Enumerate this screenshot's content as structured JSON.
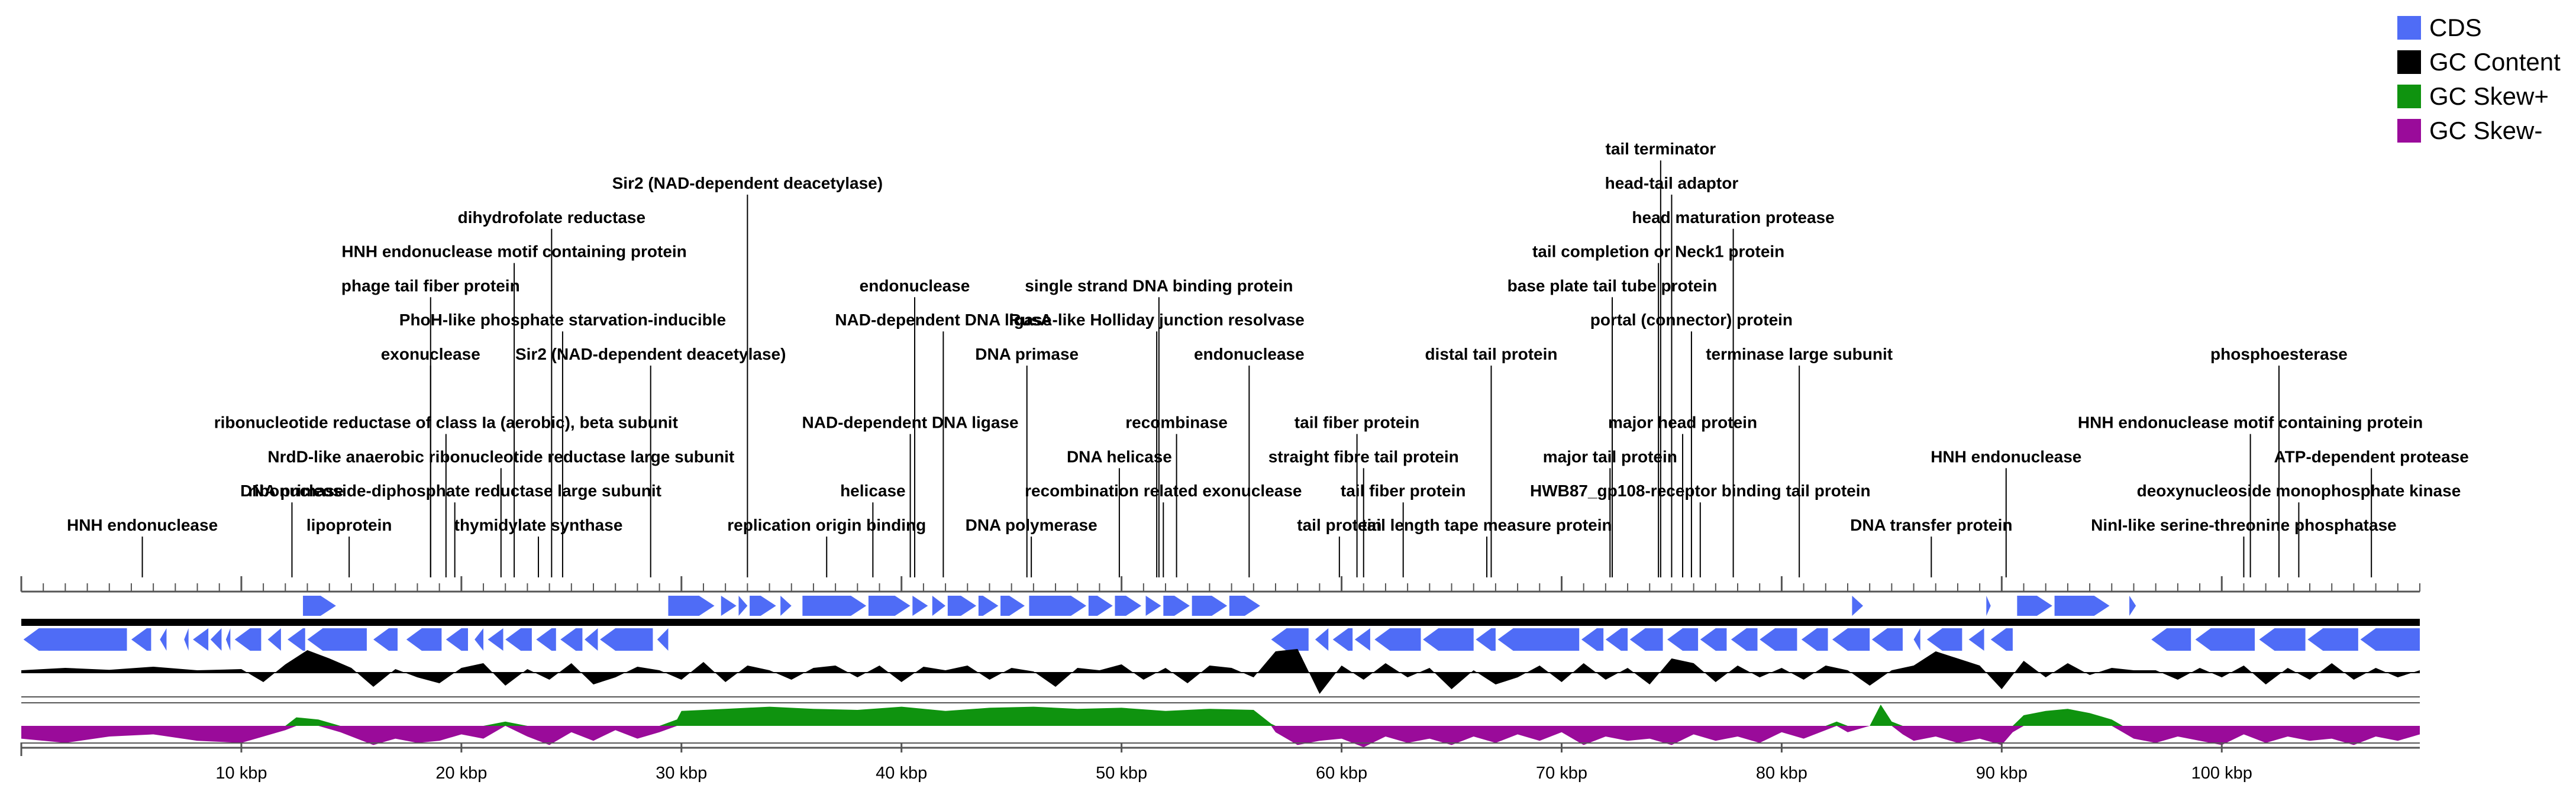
{
  "legend": [
    {
      "label": "CDS",
      "color": "#4f6cf6"
    },
    {
      "label": "GC Content",
      "color": "#000000"
    },
    {
      "label": "GC Skew+",
      "color": "#0f930f"
    },
    {
      "label": "GC Skew-",
      "color": "#9a0b9a"
    }
  ],
  "colors": {
    "cds": "#4f6cf6",
    "gc": "#000000",
    "skew_pos": "#0f930f",
    "skew_neg": "#9a0b9a",
    "rule": "#555555"
  },
  "chart_data": {
    "type": "genome-map",
    "genome_length_kbp": 109,
    "x_axis": {
      "unit": "kbp",
      "range": [
        0,
        109
      ],
      "tick_labels": [
        "10 kbp",
        "20 kbp",
        "30 kbp",
        "40 kbp",
        "50 kbp",
        "60 kbp",
        "70 kbp",
        "80 kbp",
        "90 kbp",
        "100 kbp"
      ],
      "tick_values": [
        10,
        20,
        30,
        40,
        50,
        60,
        70,
        80,
        90,
        100
      ]
    },
    "annotations": [
      {
        "label": "HNH endonuclease",
        "pos_kbp": 5.5,
        "level": 0
      },
      {
        "label": "DNA primase",
        "pos_kbp": 12.3,
        "level": 1
      },
      {
        "label": "lipoprotein",
        "pos_kbp": 14.9,
        "level": 0
      },
      {
        "label": "exonuclease",
        "pos_kbp": 18.6,
        "level": 5
      },
      {
        "label": "phage tail fiber protein",
        "pos_kbp": 18.6,
        "level": 7
      },
      {
        "label": "ribonucleotide reductase of class Ia (aerobic), beta subunit",
        "pos_kbp": 19.3,
        "level": 3
      },
      {
        "label": "ribonucleoside-diphosphate reductase large subunit",
        "pos_kbp": 19.7,
        "level": 1
      },
      {
        "label": "NrdD-like anaerobic ribonucleotide reductase large subunit",
        "pos_kbp": 21.8,
        "level": 2
      },
      {
        "label": "HNH endonuclease motif containing protein",
        "pos_kbp": 22.4,
        "level": 8
      },
      {
        "label": "thymidylate synthase",
        "pos_kbp": 23.5,
        "level": 0
      },
      {
        "label": "dihydrofolate reductase",
        "pos_kbp": 24.1,
        "level": 9
      },
      {
        "label": "PhoH-like phosphate starvation-inducible",
        "pos_kbp": 24.6,
        "level": 6
      },
      {
        "label": "Sir2 (NAD-dependent deacetylase)",
        "pos_kbp": 28.6,
        "level": 5
      },
      {
        "label": "Sir2 (NAD-dependent deacetylase)",
        "pos_kbp": 33.0,
        "level": 10
      },
      {
        "label": "replication origin binding",
        "pos_kbp": 36.6,
        "level": 0
      },
      {
        "label": "helicase",
        "pos_kbp": 38.7,
        "level": 1
      },
      {
        "label": "NAD-dependent DNA ligase",
        "pos_kbp": 40.4,
        "level": 3
      },
      {
        "label": "endonuclease",
        "pos_kbp": 40.6,
        "level": 7
      },
      {
        "label": "NAD-dependent DNA ligase",
        "pos_kbp": 41.9,
        "level": 6
      },
      {
        "label": "DNA primase",
        "pos_kbp": 45.7,
        "level": 5
      },
      {
        "label": "DNA polymerase",
        "pos_kbp": 45.9,
        "level": 0
      },
      {
        "label": "DNA helicase",
        "pos_kbp": 49.9,
        "level": 2
      },
      {
        "label": "recombination related exonuclease",
        "pos_kbp": 51.9,
        "level": 1
      },
      {
        "label": "recombinase",
        "pos_kbp": 52.5,
        "level": 3
      },
      {
        "label": "RusA-like Holliday junction resolvase",
        "pos_kbp": 51.6,
        "level": 6
      },
      {
        "label": "single strand DNA binding protein",
        "pos_kbp": 51.7,
        "level": 7
      },
      {
        "label": "endonuclease",
        "pos_kbp": 55.8,
        "level": 5
      },
      {
        "label": "tail protein",
        "pos_kbp": 59.9,
        "level": 0
      },
      {
        "label": "tail fiber protein",
        "pos_kbp": 60.7,
        "level": 3
      },
      {
        "label": "straight fibre tail protein",
        "pos_kbp": 61.0,
        "level": 2
      },
      {
        "label": "tail fiber protein",
        "pos_kbp": 62.8,
        "level": 1
      },
      {
        "label": "tail length tape measure protein",
        "pos_kbp": 66.6,
        "level": 0
      },
      {
        "label": "distal tail protein",
        "pos_kbp": 66.8,
        "level": 5
      },
      {
        "label": "major tail protein",
        "pos_kbp": 72.2,
        "level": 2
      },
      {
        "label": "base plate tail tube protein",
        "pos_kbp": 72.3,
        "level": 7
      },
      {
        "label": "tail completion or Neck1 protein",
        "pos_kbp": 74.4,
        "level": 8
      },
      {
        "label": "tail terminator",
        "pos_kbp": 74.5,
        "level": 11
      },
      {
        "label": "head-tail adaptor",
        "pos_kbp": 75.0,
        "level": 10
      },
      {
        "label": "major head protein",
        "pos_kbp": 75.5,
        "level": 3
      },
      {
        "label": "portal (connector) protein",
        "pos_kbp": 75.9,
        "level": 6
      },
      {
        "label": "HWB87_gp108-receptor binding tail protein",
        "pos_kbp": 76.3,
        "level": 1
      },
      {
        "label": "head maturation protease",
        "pos_kbp": 77.8,
        "level": 9
      },
      {
        "label": "terminase large subunit",
        "pos_kbp": 80.8,
        "level": 5
      },
      {
        "label": "DNA transfer protein",
        "pos_kbp": 86.8,
        "level": 0
      },
      {
        "label": "HNH endonuclease",
        "pos_kbp": 90.2,
        "level": 2
      },
      {
        "label": "NinI-like serine-threonine phosphatase",
        "pos_kbp": 101.0,
        "level": 0
      },
      {
        "label": "HNH endonuclease motif containing protein",
        "pos_kbp": 101.3,
        "level": 3
      },
      {
        "label": "phosphoesterase",
        "pos_kbp": 102.6,
        "level": 5
      },
      {
        "label": "deoxynucleoside monophosphate kinase",
        "pos_kbp": 103.5,
        "level": 1
      },
      {
        "label": "ATP-dependent protease",
        "pos_kbp": 106.8,
        "level": 2
      }
    ],
    "cds_forward": [
      [
        12.8,
        14.3
      ],
      [
        29.4,
        31.5
      ],
      [
        31.8,
        32.5
      ],
      [
        32.6,
        33.0
      ],
      [
        33.1,
        34.3
      ],
      [
        34.5,
        35.0
      ],
      [
        35.5,
        38.4
      ],
      [
        38.5,
        40.4
      ],
      [
        40.5,
        41.2
      ],
      [
        41.4,
        42.0
      ],
      [
        42.1,
        43.4
      ],
      [
        43.5,
        44.4
      ],
      [
        44.5,
        45.6
      ],
      [
        45.8,
        48.4
      ],
      [
        48.5,
        49.6
      ],
      [
        49.7,
        50.9
      ],
      [
        51.1,
        51.8
      ],
      [
        51.9,
        53.1
      ],
      [
        53.2,
        54.8
      ],
      [
        54.9,
        56.3
      ],
      [
        83.2,
        83.7
      ],
      [
        89.3,
        89.5
      ],
      [
        90.7,
        92.3
      ],
      [
        92.4,
        94.9
      ],
      [
        95.8,
        96.1
      ]
    ],
    "cds_reverse": [
      [
        0.1,
        4.8
      ],
      [
        5.0,
        5.9
      ],
      [
        6.3,
        6.6
      ],
      [
        7.4,
        7.6
      ],
      [
        7.8,
        8.5
      ],
      [
        8.6,
        9.1
      ],
      [
        9.3,
        9.5
      ],
      [
        9.7,
        10.9
      ],
      [
        11.2,
        11.8
      ],
      [
        12.1,
        12.9
      ],
      [
        13.0,
        15.7
      ],
      [
        16.0,
        17.1
      ],
      [
        17.5,
        19.1
      ],
      [
        19.3,
        20.3
      ],
      [
        20.6,
        21.0
      ],
      [
        21.2,
        21.9
      ],
      [
        22.0,
        23.2
      ],
      [
        23.4,
        24.3
      ],
      [
        24.5,
        25.5
      ],
      [
        25.6,
        26.2
      ],
      [
        26.3,
        28.7
      ],
      [
        28.9,
        29.4
      ],
      [
        56.8,
        58.5
      ],
      [
        58.8,
        59.4
      ],
      [
        59.6,
        60.5
      ],
      [
        60.6,
        61.3
      ],
      [
        61.5,
        63.6
      ],
      [
        63.7,
        66.0
      ],
      [
        66.1,
        67.0
      ],
      [
        67.1,
        70.8
      ],
      [
        70.9,
        71.9
      ],
      [
        72.0,
        73.0
      ],
      [
        73.1,
        74.6
      ],
      [
        74.8,
        76.2
      ],
      [
        76.3,
        77.5
      ],
      [
        77.7,
        78.9
      ],
      [
        79.0,
        80.7
      ],
      [
        80.9,
        82.1
      ],
      [
        82.3,
        84.0
      ],
      [
        84.1,
        85.5
      ],
      [
        86.0,
        86.3
      ],
      [
        86.6,
        88.2
      ],
      [
        88.5,
        89.2
      ],
      [
        89.5,
        90.5
      ],
      [
        96.8,
        98.6
      ],
      [
        98.8,
        101.5
      ],
      [
        101.7,
        103.8
      ],
      [
        103.9,
        106.2
      ],
      [
        106.3,
        109.0
      ]
    ],
    "gc_content_profile": [
      [
        0,
        0.1
      ],
      [
        2,
        0.2
      ],
      [
        4,
        0.12
      ],
      [
        6,
        0.25
      ],
      [
        8,
        0.1
      ],
      [
        10,
        0.15
      ],
      [
        11,
        -0.4
      ],
      [
        12,
        0.35
      ],
      [
        13,
        0.95
      ],
      [
        14,
        0.6
      ],
      [
        15,
        0.2
      ],
      [
        16,
        -0.6
      ],
      [
        17,
        0.15
      ],
      [
        18,
        -0.2
      ],
      [
        19,
        -0.45
      ],
      [
        20,
        0.2
      ],
      [
        21,
        0.4
      ],
      [
        22,
        -0.55
      ],
      [
        23,
        0.15
      ],
      [
        24,
        -0.3
      ],
      [
        25,
        0.4
      ],
      [
        26,
        -0.5
      ],
      [
        27,
        -0.2
      ],
      [
        28,
        0.25
      ],
      [
        29,
        0.1
      ],
      [
        30,
        -0.3
      ],
      [
        31,
        0.45
      ],
      [
        32,
        -0.4
      ],
      [
        33,
        0.3
      ],
      [
        34,
        0.1
      ],
      [
        35,
        -0.3
      ],
      [
        36,
        0.2
      ],
      [
        37,
        0.3
      ],
      [
        38,
        -0.2
      ],
      [
        39,
        0.3
      ],
      [
        40,
        -0.4
      ],
      [
        41,
        0.25
      ],
      [
        42,
        0.1
      ],
      [
        43,
        0.3
      ],
      [
        44,
        -0.3
      ],
      [
        45,
        0.2
      ],
      [
        46,
        0.05
      ],
      [
        47,
        -0.6
      ],
      [
        48,
        0.2
      ],
      [
        49,
        0.1
      ],
      [
        50,
        0.35
      ],
      [
        51,
        -0.3
      ],
      [
        52,
        0.2
      ],
      [
        53,
        -0.45
      ],
      [
        54,
        0.3
      ],
      [
        55,
        0.2
      ],
      [
        56,
        -0.2
      ],
      [
        57,
        0.9
      ],
      [
        58,
        1.0
      ],
      [
        59,
        -0.9
      ],
      [
        60,
        0.3
      ],
      [
        61,
        -0.3
      ],
      [
        62,
        0.4
      ],
      [
        63,
        -0.2
      ],
      [
        64,
        0.2
      ],
      [
        65,
        -0.7
      ],
      [
        66,
        0.1
      ],
      [
        67,
        -0.5
      ],
      [
        68,
        -0.2
      ],
      [
        69,
        0.3
      ],
      [
        70,
        -0.4
      ],
      [
        71,
        0.4
      ],
      [
        72,
        -0.3
      ],
      [
        73,
        0.2
      ],
      [
        74,
        -0.5
      ],
      [
        75,
        0.6
      ],
      [
        76,
        0.4
      ],
      [
        77,
        -0.4
      ],
      [
        78,
        0.3
      ],
      [
        79,
        -0.2
      ],
      [
        80,
        0.2
      ],
      [
        81,
        -0.3
      ],
      [
        82,
        0.3
      ],
      [
        83,
        0.1
      ],
      [
        84,
        -0.55
      ],
      [
        85,
        0.1
      ],
      [
        86,
        0.3
      ],
      [
        87,
        0.9
      ],
      [
        88,
        0.6
      ],
      [
        89,
        0.3
      ],
      [
        90,
        -0.7
      ],
      [
        91,
        0.5
      ],
      [
        92,
        -0.2
      ],
      [
        93,
        0.4
      ],
      [
        94,
        -0.1
      ],
      [
        95,
        0.2
      ],
      [
        96,
        0.1
      ],
      [
        97,
        0.1
      ],
      [
        98,
        -0.3
      ],
      [
        99,
        0.2
      ],
      [
        100,
        -0.2
      ],
      [
        101,
        0.3
      ],
      [
        102,
        -0.5
      ],
      [
        103,
        0.2
      ],
      [
        104,
        -0.3
      ],
      [
        105,
        0.4
      ],
      [
        106,
        -0.3
      ],
      [
        107,
        0.2
      ],
      [
        108,
        -0.2
      ],
      [
        109,
        0.1
      ]
    ],
    "gc_skew_profile": [
      [
        0,
        -0.6
      ],
      [
        2,
        -0.8
      ],
      [
        4,
        -0.5
      ],
      [
        6,
        -0.4
      ],
      [
        8,
        -0.7
      ],
      [
        10,
        -0.8
      ],
      [
        11,
        -0.5
      ],
      [
        12,
        -0.2
      ],
      [
        12.5,
        0.4
      ],
      [
        13.5,
        0.3
      ],
      [
        14.5,
        -0.3
      ],
      [
        16,
        -0.9
      ],
      [
        17,
        -0.6
      ],
      [
        18,
        -0.8
      ],
      [
        19,
        -0.7
      ],
      [
        20,
        -0.4
      ],
      [
        21,
        -0.6
      ],
      [
        22,
        0.2
      ],
      [
        23,
        -0.5
      ],
      [
        24,
        -0.9
      ],
      [
        25,
        -0.3
      ],
      [
        26,
        -0.7
      ],
      [
        27,
        -0.2
      ],
      [
        28,
        -0.6
      ],
      [
        29,
        -0.3
      ],
      [
        29.8,
        0.3
      ],
      [
        30,
        0.7
      ],
      [
        32,
        0.8
      ],
      [
        34,
        0.9
      ],
      [
        36,
        0.8
      ],
      [
        38,
        0.75
      ],
      [
        40,
        0.9
      ],
      [
        42,
        0.7
      ],
      [
        44,
        0.85
      ],
      [
        46,
        0.9
      ],
      [
        48,
        0.8
      ],
      [
        50,
        0.85
      ],
      [
        52,
        0.7
      ],
      [
        54,
        0.8
      ],
      [
        56,
        0.75
      ],
      [
        56.8,
        0.1
      ],
      [
        57,
        -0.3
      ],
      [
        58,
        -0.9
      ],
      [
        59,
        -0.7
      ],
      [
        60,
        -0.6
      ],
      [
        61,
        -1.0
      ],
      [
        62,
        -0.5
      ],
      [
        63,
        -0.8
      ],
      [
        64,
        -0.6
      ],
      [
        65,
        -0.9
      ],
      [
        66,
        -0.5
      ],
      [
        67,
        -0.8
      ],
      [
        68,
        -0.4
      ],
      [
        69,
        -0.7
      ],
      [
        70,
        -0.3
      ],
      [
        71,
        -0.9
      ],
      [
        72,
        -0.5
      ],
      [
        73,
        -0.7
      ],
      [
        74,
        -0.6
      ],
      [
        75,
        -0.9
      ],
      [
        76,
        -0.4
      ],
      [
        77,
        -0.7
      ],
      [
        78,
        -0.5
      ],
      [
        79,
        -0.8
      ],
      [
        80,
        -0.3
      ],
      [
        81,
        -0.6
      ],
      [
        82,
        -0.2
      ],
      [
        82.5,
        0.2
      ],
      [
        83,
        -0.3
      ],
      [
        84,
        0.0
      ],
      [
        84.5,
        1.0
      ],
      [
        85,
        0.2
      ],
      [
        85.5,
        -0.4
      ],
      [
        86,
        -0.7
      ],
      [
        87,
        -0.5
      ],
      [
        88,
        -0.8
      ],
      [
        89,
        -0.6
      ],
      [
        90,
        -0.9
      ],
      [
        90.5,
        -0.3
      ],
      [
        91,
        0.5
      ],
      [
        92,
        0.7
      ],
      [
        93,
        0.8
      ],
      [
        94,
        0.6
      ],
      [
        95,
        0.3
      ],
      [
        95.5,
        -0.3
      ],
      [
        96,
        -0.6
      ],
      [
        97,
        -0.8
      ],
      [
        98,
        -0.5
      ],
      [
        99,
        -0.7
      ],
      [
        100,
        -0.9
      ],
      [
        101,
        -0.4
      ],
      [
        102,
        -0.8
      ],
      [
        103,
        -0.5
      ],
      [
        104,
        -0.7
      ],
      [
        105,
        -0.6
      ],
      [
        106,
        -0.9
      ],
      [
        107,
        -0.5
      ],
      [
        108,
        -0.7
      ],
      [
        109,
        -0.4
      ]
    ]
  }
}
